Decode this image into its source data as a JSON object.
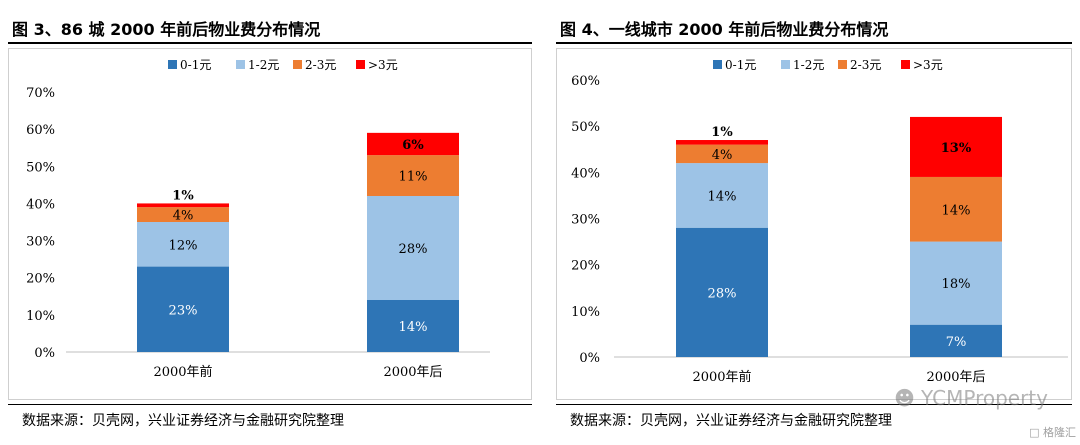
{
  "figures": [
    {
      "title": "图 3、86 城 2000 年前后物业费分布情况",
      "source": "数据来源：贝壳网，兴业证券经济与金融研究院整理"
    },
    {
      "title": "图 4、一线城市 2000 年前后物业费分布情况",
      "source": "数据来源：贝壳网，兴业证券经济与金融研究院整理"
    }
  ],
  "watermark": {
    "icon": "wechat-icon",
    "text": "YCMProperty"
  },
  "corner_logo": "格隆汇",
  "colors": {
    "s1": "#2E75B6",
    "s2": "#9DC3E6",
    "s3": "#ED7D31",
    "s4": "#FF0000",
    "axis": "#bfbfbf"
  },
  "chart_data": [
    {
      "type": "bar",
      "stacked": true,
      "title": "图 3、86 城 2000 年前后物业费分布情况",
      "categories": [
        "2000年前",
        "2000年后"
      ],
      "series": [
        {
          "name": "0-1元",
          "values": [
            23,
            14
          ],
          "labels": [
            "23%",
            "14%"
          ]
        },
        {
          "name": "1-2元",
          "values": [
            12,
            28
          ],
          "labels": [
            "12%",
            "28%"
          ]
        },
        {
          "name": "2-3元",
          "values": [
            4,
            11
          ],
          "labels": [
            "4%",
            "11%"
          ]
        },
        {
          "name": ">3元",
          "values": [
            1,
            6
          ],
          "labels": [
            "1%",
            "6%"
          ]
        }
      ],
      "ylim": [
        0,
        70
      ],
      "yticks": [
        "0%",
        "10%",
        "20%",
        "30%",
        "40%",
        "50%",
        "60%",
        "70%"
      ],
      "legend": "top",
      "grid": false
    },
    {
      "type": "bar",
      "stacked": true,
      "title": "图 4、一线城市 2000 年前后物业费分布情况",
      "categories": [
        "2000年前",
        "2000年后"
      ],
      "series": [
        {
          "name": "0-1元",
          "values": [
            28,
            7
          ],
          "labels": [
            "28%",
            "7%"
          ]
        },
        {
          "name": "1-2元",
          "values": [
            14,
            18
          ],
          "labels": [
            "14%",
            "18%"
          ]
        },
        {
          "name": "2-3元",
          "values": [
            4,
            14
          ],
          "labels": [
            "4%",
            "14%"
          ]
        },
        {
          "name": ">3元",
          "values": [
            1,
            13
          ],
          "labels": [
            "1%",
            "13%"
          ]
        }
      ],
      "ylim": [
        0,
        60
      ],
      "yticks": [
        "0%",
        "10%",
        "20%",
        "30%",
        "40%",
        "50%",
        "60%"
      ],
      "legend": "top",
      "grid": false
    }
  ]
}
